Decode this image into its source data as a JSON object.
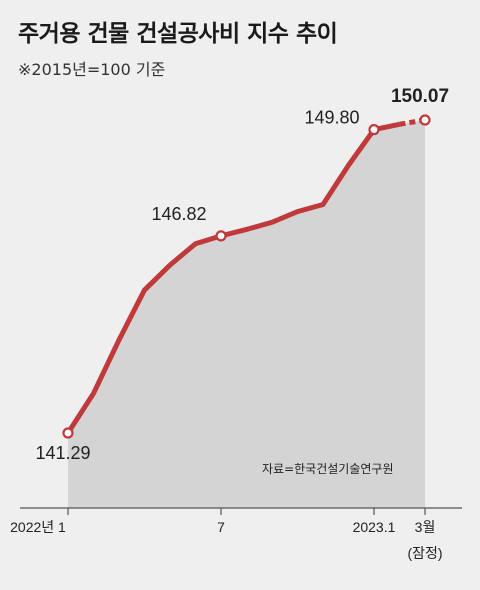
{
  "title": "주거용 건물 건설공사비 지수 추이",
  "subtitle": "※2015년=100 기준",
  "source": "자료=한국건설기술연구원",
  "colors": {
    "line": "#c0393b",
    "area": "#d4d4d4",
    "background": "#efefef"
  },
  "chart_data": {
    "type": "line",
    "title": "주거용 건물 건설공사비 지수 추이",
    "subtitle": "※2015년=100 기준",
    "x": [
      "2022-01",
      "2022-02",
      "2022-03",
      "2022-04",
      "2022-05",
      "2022-06",
      "2022-07",
      "2022-08",
      "2022-09",
      "2022-10",
      "2022-11",
      "2022-12",
      "2023-01",
      "2023-02",
      "2023-03"
    ],
    "series": [
      {
        "values": [
          141.29,
          142.4,
          143.9,
          145.3,
          146.0,
          146.6,
          146.82,
          147.0,
          147.2,
          147.5,
          147.7,
          148.8,
          149.8,
          149.95,
          150.07
        ]
      }
    ],
    "dashed_last_segment": true,
    "tick_labels": [
      {
        "x": "2022-01",
        "label": "2022년 1"
      },
      {
        "x": "2022-07",
        "label": "7"
      },
      {
        "x": "2023-01",
        "label": "2023.1"
      },
      {
        "x": "2023-03",
        "label": "3월",
        "sublabel": "(잠정)"
      }
    ],
    "value_labels": [
      {
        "x": "2022-01",
        "text": "141.29",
        "bold": false
      },
      {
        "x": "2022-07",
        "text": "146.82",
        "bold": false
      },
      {
        "x": "2023-01",
        "text": "149.80",
        "bold": false
      },
      {
        "x": "2023-03",
        "text": "150.07",
        "bold": true
      }
    ],
    "highlight_points": [
      "2022-01",
      "2022-07",
      "2023-01",
      "2023-03"
    ],
    "grid": false,
    "area_fill": true
  }
}
